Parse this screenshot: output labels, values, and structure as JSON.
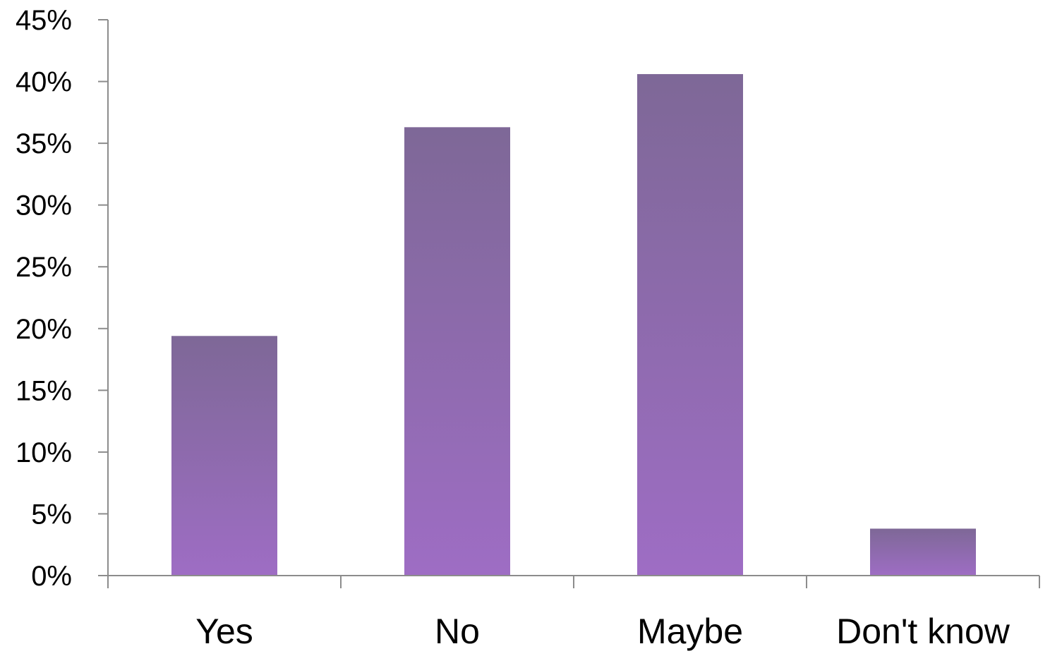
{
  "chart_data": {
    "type": "bar",
    "title": "",
    "xlabel": "",
    "ylabel": "",
    "categories": [
      "Yes",
      "No",
      "Maybe",
      "Don't know"
    ],
    "values": [
      19.4,
      36.3,
      40.6,
      3.8
    ],
    "ylim": [
      0,
      45
    ],
    "yticks": [
      0,
      5,
      10,
      15,
      20,
      25,
      30,
      35,
      40,
      45
    ],
    "ytick_labels": [
      "0%",
      "5%",
      "10%",
      "15%",
      "20%",
      "25%",
      "30%",
      "35%",
      "40%",
      "45%"
    ],
    "grid": false,
    "legend": "none",
    "colors": {
      "bar_top": "#7e6897",
      "bar_bottom": "#9e6dc4",
      "axis": "#8c8c8c"
    }
  }
}
